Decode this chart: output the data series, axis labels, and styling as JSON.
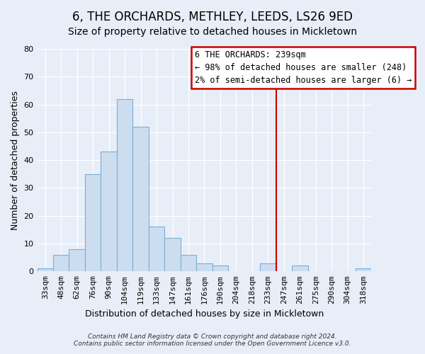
{
  "title": "6, THE ORCHARDS, METHLEY, LEEDS, LS26 9ED",
  "subtitle": "Size of property relative to detached houses in Mickletown",
  "xlabel": "Distribution of detached houses by size in Mickletown",
  "ylabel": "Number of detached properties",
  "bar_labels": [
    "33sqm",
    "48sqm",
    "62sqm",
    "76sqm",
    "90sqm",
    "104sqm",
    "119sqm",
    "133sqm",
    "147sqm",
    "161sqm",
    "176sqm",
    "190sqm",
    "204sqm",
    "218sqm",
    "233sqm",
    "247sqm",
    "261sqm",
    "275sqm",
    "290sqm",
    "304sqm",
    "318sqm"
  ],
  "bar_values": [
    1,
    6,
    8,
    35,
    43,
    62,
    52,
    16,
    12,
    6,
    3,
    2,
    0,
    0,
    3,
    0,
    2,
    0,
    0,
    0,
    1
  ],
  "bar_color": "#cdddf0",
  "bar_edge_color": "#7aaed4",
  "vline_x": 14.5,
  "vline_color": "#cc0000",
  "annotation_title": "6 THE ORCHARDS: 239sqm",
  "annotation_line1": "← 98% of detached houses are smaller (248)",
  "annotation_line2": "2% of semi-detached houses are larger (6) →",
  "annotation_box_facecolor": "#ffffff",
  "annotation_box_edgecolor": "#cc0000",
  "ylim": [
    0,
    80
  ],
  "yticks": [
    0,
    10,
    20,
    30,
    40,
    50,
    60,
    70,
    80
  ],
  "footer": "Contains HM Land Registry data © Crown copyright and database right 2024.\nContains public sector information licensed under the Open Government Licence v3.0.",
  "bg_color": "#e8eef8",
  "plot_bg_color": "#e8eef8",
  "grid_color": "#ffffff",
  "title_fontsize": 12,
  "subtitle_fontsize": 10,
  "ylabel_fontsize": 9,
  "xlabel_fontsize": 9
}
